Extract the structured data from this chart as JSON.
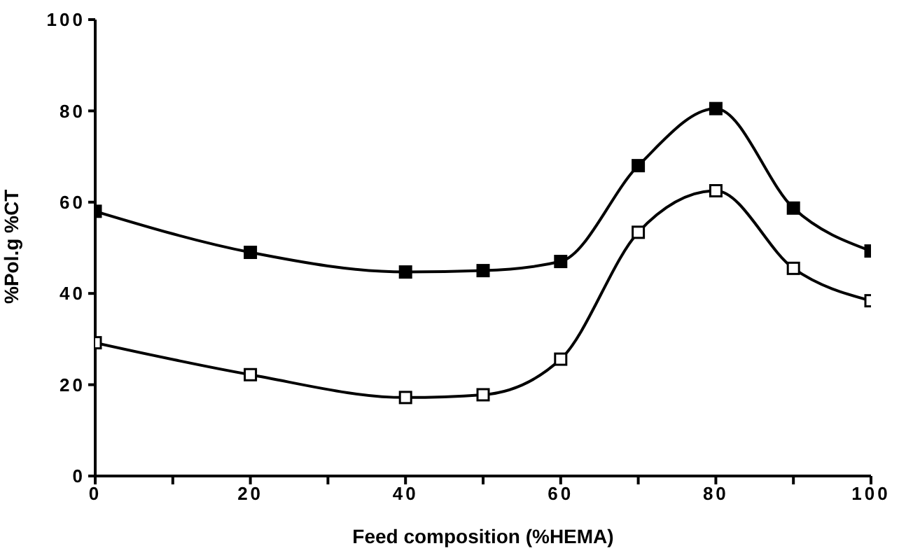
{
  "chart_data": {
    "type": "line",
    "xlabel": "Feed composition (%HEMA)",
    "ylabel": "%Pol.g %CT",
    "x": [
      0,
      20,
      40,
      50,
      60,
      70,
      80,
      90,
      100
    ],
    "series": [
      {
        "color": "#000000",
        "values": [
          58,
          49,
          44.7,
          45,
          47,
          68,
          80.5,
          58.7,
          49.3
        ]
      },
      {
        "color": "#000000",
        "values": [
          29.2,
          22.2,
          17.2,
          17.8,
          25.6,
          53.4,
          62.5,
          45.5,
          38.4
        ]
      }
    ],
    "xlim": [
      0,
      100
    ],
    "xticks": [
      0,
      {
        "value": 10,
        "label": null
      },
      20,
      {
        "value": 30,
        "label": null
      },
      40,
      {
        "value": 50,
        "label": null
      },
      60,
      {
        "value": 70,
        "label": null
      },
      80,
      {
        "value": 90,
        "label": null
      },
      100
    ],
    "ylim": [
      0,
      100
    ],
    "yticks": [
      0,
      20,
      40,
      60,
      80,
      100
    ],
    "grid": false,
    "legend": false,
    "marker": "square",
    "line_style": "solid"
  }
}
